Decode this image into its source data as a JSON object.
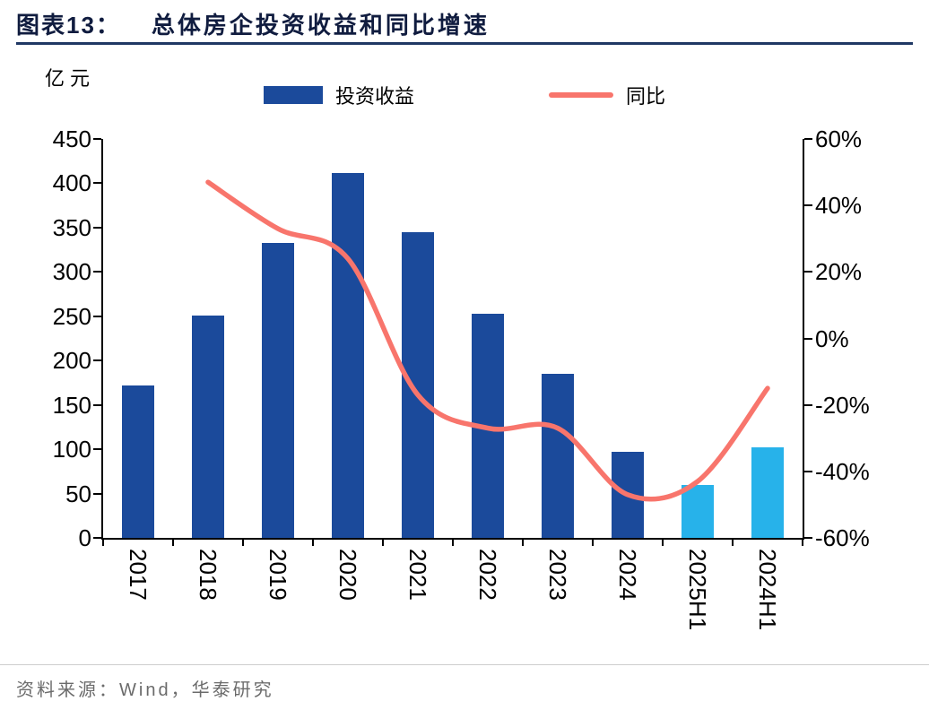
{
  "header": {
    "prefix": "图表13：",
    "title": "总体房企投资收益和同比增速"
  },
  "y_unit_label": "亿元",
  "legend": {
    "bar_label": "投资收益",
    "bar_color": "#1B4A9B",
    "line_label": "同比",
    "line_color": "#F8756C"
  },
  "footer": {
    "source": "资料来源：Wind，华泰研究"
  },
  "chart_data": {
    "type": "combo",
    "title": "总体房企投资收益和同比增速",
    "categories": [
      "2017",
      "2018",
      "2019",
      "2020",
      "2021",
      "2022",
      "2023",
      "2024",
      "2025H1",
      "2024H1"
    ],
    "series": [
      {
        "name": "投资收益",
        "type": "bar",
        "axis": "left",
        "unit": "亿元",
        "values": [
          172,
          251,
          333,
          412,
          345,
          253,
          185,
          97,
          60,
          102
        ],
        "colors": [
          "#1B4A9B",
          "#1B4A9B",
          "#1B4A9B",
          "#1B4A9B",
          "#1B4A9B",
          "#1B4A9B",
          "#1B4A9B",
          "#1B4A9B",
          "#27B2EA",
          "#27B2EA"
        ]
      },
      {
        "name": "同比",
        "type": "line",
        "axis": "right",
        "unit": "%",
        "values": [
          null,
          47,
          33,
          24,
          -17,
          -27,
          -27,
          -47,
          -43,
          -15
        ],
        "color": "#F8756C"
      }
    ],
    "left_axis": {
      "label": "亿元",
      "min": 0,
      "max": 450,
      "step": 50,
      "ticks": [
        "450",
        "400",
        "350",
        "300",
        "250",
        "200",
        "150",
        "100",
        "50",
        "0"
      ]
    },
    "right_axis": {
      "min": -60,
      "max": 60,
      "step": 20,
      "ticks": [
        "60%",
        "40%",
        "20%",
        "0%",
        "-20%",
        "-40%",
        "-60%"
      ]
    },
    "grid": false,
    "legend_position": "top"
  }
}
